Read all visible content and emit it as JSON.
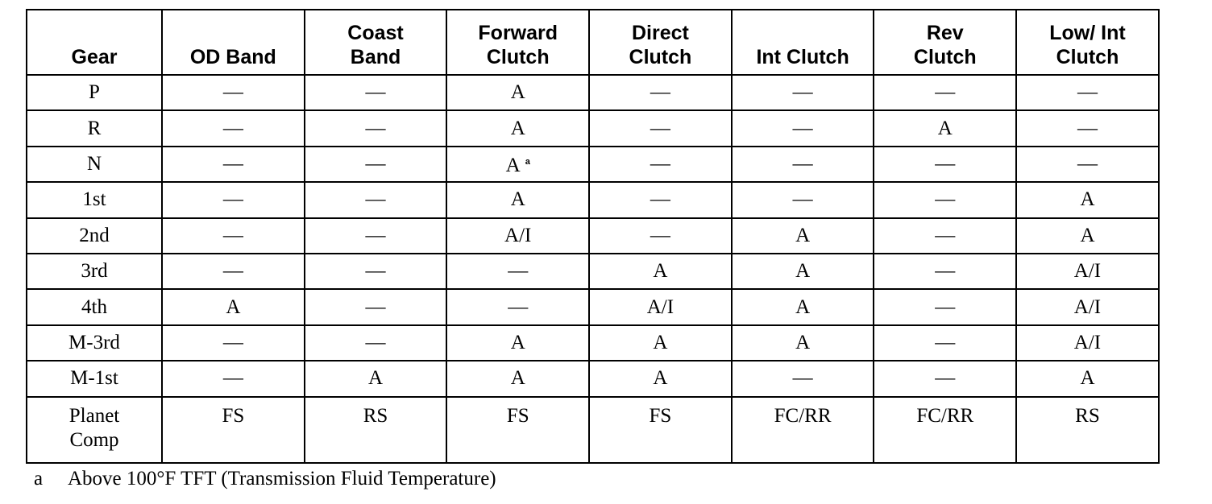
{
  "table": {
    "headers": [
      "Gear",
      "OD Band",
      "Coast Band",
      "Forward Clutch",
      "Direct Clutch",
      "Int Clutch",
      "Rev Clutch",
      "Low/ Int Clutch"
    ],
    "header_lines": [
      [
        "Gear"
      ],
      [
        "OD Band"
      ],
      [
        "Coast",
        "Band"
      ],
      [
        "Forward",
        "Clutch"
      ],
      [
        "Direct",
        "Clutch"
      ],
      [
        "Int Clutch"
      ],
      [
        "Rev",
        "Clutch"
      ],
      [
        "Low/ Int",
        "Clutch"
      ]
    ],
    "rows": [
      {
        "gear": "P",
        "cells": [
          "—",
          "—",
          "A",
          "—",
          "—",
          "—",
          "—"
        ]
      },
      {
        "gear": "R",
        "cells": [
          "—",
          "—",
          "A",
          "—",
          "—",
          "A",
          "—"
        ]
      },
      {
        "gear": "N",
        "cells": [
          "—",
          "—",
          "A",
          "—",
          "—",
          "—",
          "—"
        ],
        "notes": [
          "",
          "",
          "a",
          "",
          "",
          "",
          ""
        ]
      },
      {
        "gear": "1st",
        "cells": [
          "—",
          "—",
          "A",
          "—",
          "—",
          "—",
          "A"
        ]
      },
      {
        "gear": "2nd",
        "cells": [
          "—",
          "—",
          "A/I",
          "—",
          "A",
          "—",
          "A"
        ]
      },
      {
        "gear": "3rd",
        "cells": [
          "—",
          "—",
          "—",
          "A",
          "A",
          "—",
          "A/I"
        ]
      },
      {
        "gear": "4th",
        "cells": [
          "A",
          "—",
          "—",
          "A/I",
          "A",
          "—",
          "A/I"
        ]
      },
      {
        "gear": "M-3rd",
        "cells": [
          "—",
          "—",
          "A",
          "A",
          "A",
          "—",
          "A/I"
        ]
      },
      {
        "gear": "M-1st",
        "cells": [
          "—",
          "A",
          "A",
          "A",
          "—",
          "—",
          "A"
        ]
      },
      {
        "gear_lines": [
          "Planet",
          "Comp"
        ],
        "cells": [
          "FS",
          "RS",
          "FS",
          "FS",
          "FC/RR",
          "FC/RR",
          "RS"
        ]
      }
    ]
  },
  "footnote": {
    "mark": "a",
    "text": "Above 100°F TFT (Transmission Fluid Temperature)"
  }
}
